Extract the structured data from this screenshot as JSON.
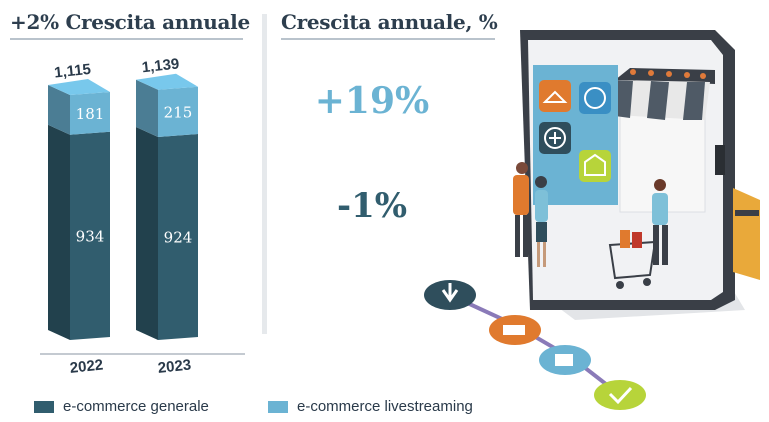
{
  "header_left": "+2% Crescita annuale",
  "header_right": "Crescita annuale, %",
  "growth": {
    "livestreaming": "+19%",
    "generale": "-1%"
  },
  "colors": {
    "generale": "#315d6e",
    "livestreaming": "#6bb3d3",
    "up": "#6bb3d3",
    "down": "#315d6e"
  },
  "chart_data": {
    "type": "bar",
    "stacked": true,
    "categories": [
      "2022",
      "2023"
    ],
    "totals": [
      "1,115",
      "1,139"
    ],
    "series": [
      {
        "name": "e-commerce generale",
        "values": [
          934,
          924
        ],
        "color": "#315d6e"
      },
      {
        "name": "e-commerce livestreaming",
        "values": [
          181,
          215
        ],
        "color": "#6bb3d3"
      }
    ],
    "legend_position": "bottom",
    "grid": false
  },
  "legend": [
    {
      "label": "e-commerce generale",
      "color": "#315d6e"
    },
    {
      "label": "e-commerce livestreaming",
      "color": "#6bb3d3"
    }
  ],
  "icons": [
    "shop-awning-icon",
    "hanger-icon",
    "basketball-icon",
    "medical-cross-icon",
    "house-icon",
    "credit-card-icon",
    "shopping-cart-icon",
    "delivery-truck-icon",
    "checkmark-icon",
    "download-arrow-icon",
    "shopper-figure-icon"
  ]
}
